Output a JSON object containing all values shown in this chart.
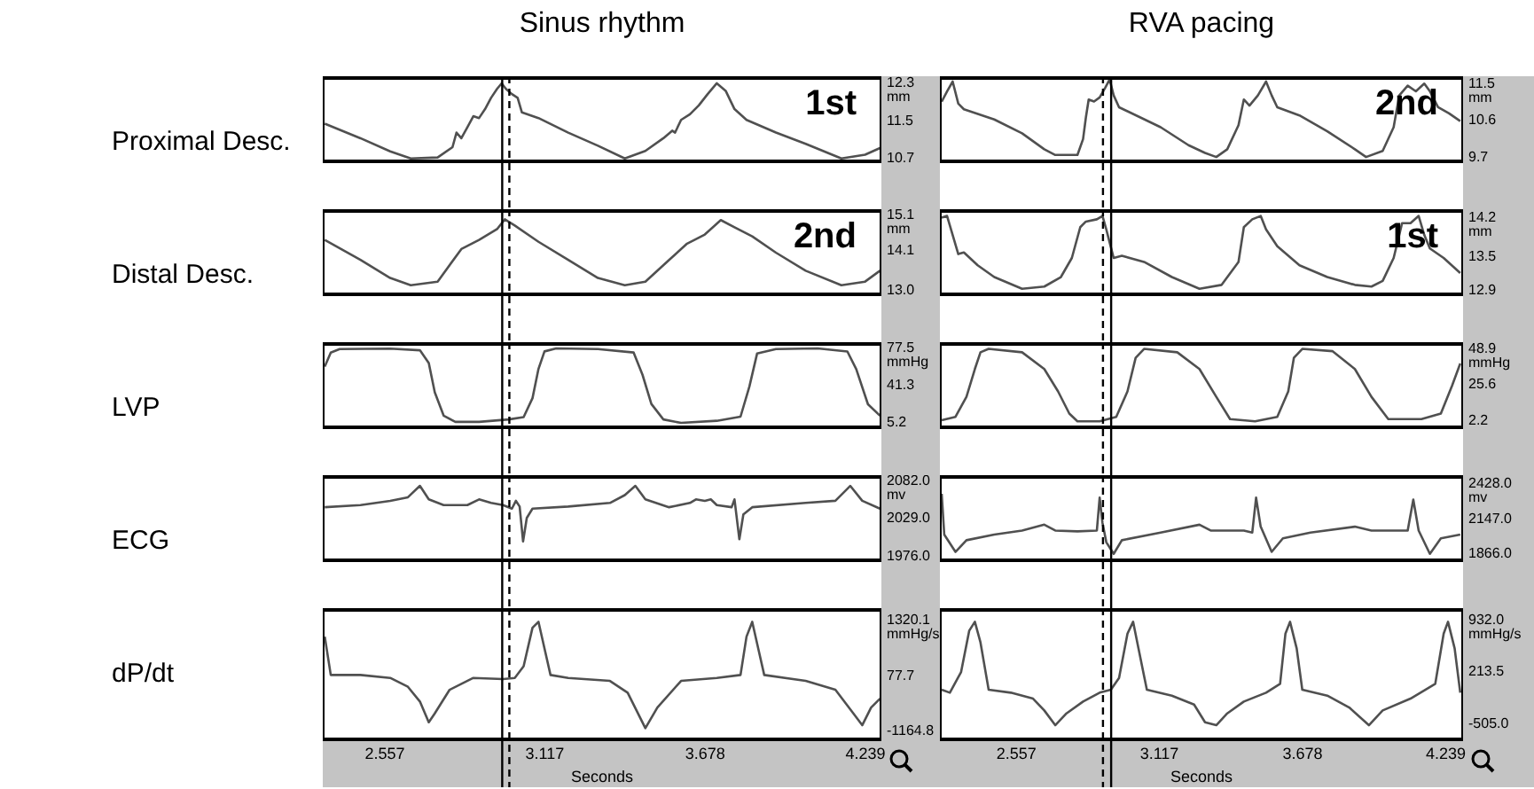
{
  "chart_data": [
    {
      "type": "line",
      "title": "Sinus rhythm",
      "ylabel": "Proximal Desc.",
      "annotations": [
        "1st"
      ],
      "color": "#505050",
      "marker": "none",
      "tick_labels": "y",
      "xlim": [
        2.34,
        4.295
      ],
      "ylim": [
        10.6,
        12.45
      ],
      "yticks": [
        {
          "value": 12.3,
          "label": "12.3\nmm"
        },
        11.5,
        10.7
      ],
      "ref_lines": [
        {
          "axis": "x",
          "value": 2.968,
          "line_style": "solid",
          "color": "#000000"
        },
        {
          "axis": "x",
          "value": 2.993,
          "line_style": "dashed",
          "color": "#000000"
        }
      ],
      "x": [
        2.347,
        2.472,
        2.576,
        2.648,
        2.742,
        2.794,
        2.808,
        2.825,
        2.846,
        2.867,
        2.887,
        2.908,
        2.929,
        2.95,
        2.966,
        2.981,
        3.002,
        3.022,
        3.037,
        3.095,
        3.199,
        3.303,
        3.397,
        3.469,
        3.532,
        3.563,
        3.573,
        3.594,
        3.625,
        3.656,
        3.687,
        3.719,
        3.75,
        3.781,
        3.823,
        3.926,
        4.03,
        4.155,
        4.238,
        4.29
      ],
      "values": [
        11.44,
        11.13,
        10.85,
        10.7,
        10.72,
        10.94,
        11.25,
        11.13,
        11.36,
        11.6,
        11.56,
        11.75,
        11.99,
        12.18,
        12.3,
        12.18,
        12.07,
        11.99,
        11.68,
        11.56,
        11.25,
        10.97,
        10.7,
        10.86,
        11.13,
        11.29,
        11.25,
        11.52,
        11.64,
        11.83,
        12.07,
        12.3,
        12.14,
        11.75,
        11.52,
        11.25,
        11.01,
        10.7,
        10.78,
        10.92
      ]
    },
    {
      "type": "line",
      "ylabel": "Distal Desc.",
      "annotations": [
        "2nd"
      ],
      "color": "#505050",
      "marker": "none",
      "tick_labels": "y",
      "xlim": [
        2.34,
        4.295
      ],
      "ylim": [
        12.85,
        15.25
      ],
      "yticks": [
        {
          "value": 15.1,
          "label": "15.1\nmm"
        },
        14.1,
        {
          "value": 13.0,
          "label": "13.0"
        }
      ],
      "ref_lines": [
        {
          "axis": "x",
          "value": 2.968,
          "line_style": "solid",
          "color": "#000000"
        },
        {
          "axis": "x",
          "value": 2.993,
          "line_style": "dashed",
          "color": "#000000"
        }
      ],
      "x": [
        2.347,
        2.472,
        2.576,
        2.648,
        2.742,
        2.825,
        2.887,
        2.95,
        2.977,
        3.012,
        3.095,
        3.199,
        3.303,
        3.397,
        3.469,
        3.552,
        3.615,
        3.677,
        3.733,
        3.781,
        3.843,
        3.926,
        4.03,
        4.155,
        4.238,
        4.29
      ],
      "values": [
        14.4,
        13.85,
        13.35,
        13.15,
        13.25,
        14.15,
        14.4,
        14.7,
        14.97,
        14.8,
        14.35,
        13.85,
        13.35,
        13.15,
        13.25,
        13.85,
        14.3,
        14.55,
        14.95,
        14.75,
        14.5,
        14.05,
        13.55,
        13.15,
        13.25,
        13.55
      ]
    },
    {
      "type": "line",
      "ylabel": "LVP",
      "color": "#505050",
      "marker": "none",
      "tick_labels": "y",
      "xlim": [
        2.34,
        4.295
      ],
      "ylim": [
        -1,
        83
      ],
      "yticks": [
        {
          "value": 77.5,
          "label": "77.5\nmmHg"
        },
        41.3,
        5.2
      ],
      "ref_lines": [
        {
          "axis": "x",
          "value": 2.968,
          "line_style": "solid",
          "color": "#000000"
        },
        {
          "axis": "x",
          "value": 2.993,
          "line_style": "dashed",
          "color": "#000000"
        }
      ],
      "x": [
        2.347,
        2.368,
        2.399,
        2.576,
        2.68,
        2.711,
        2.732,
        2.763,
        2.804,
        2.887,
        2.991,
        3.043,
        3.074,
        3.095,
        3.116,
        3.157,
        3.303,
        3.428,
        3.459,
        3.49,
        3.532,
        3.594,
        3.719,
        3.802,
        3.833,
        3.86,
        3.926,
        4.072,
        4.176,
        4.207,
        4.248,
        4.29
      ],
      "values": [
        59.4,
        73,
        76.4,
        76.8,
        75.2,
        62.8,
        34.6,
        12,
        6,
        6,
        8.3,
        10.6,
        28.9,
        57.2,
        74.1,
        77,
        76.4,
        73,
        51.5,
        23.3,
        8.3,
        5,
        7,
        11,
        40,
        72,
        76.4,
        77,
        74,
        57,
        23,
        12
      ]
    },
    {
      "type": "line",
      "ylabel": "ECG",
      "color": "#505050",
      "marker": "none",
      "tick_labels": "y",
      "xlim": [
        2.34,
        4.295
      ],
      "ylim": [
        1968,
        2090
      ],
      "yticks": [
        {
          "value": 2082,
          "label": "2082.0\nmv"
        },
        {
          "value": 2029,
          "label": "2029.0"
        },
        {
          "value": 1976,
          "label": "1976.0"
        }
      ],
      "ref_lines": [
        {
          "axis": "x",
          "value": 2.968,
          "line_style": "solid",
          "color": "#000000"
        },
        {
          "axis": "x",
          "value": 2.993,
          "line_style": "dashed",
          "color": "#000000"
        }
      ],
      "x": [
        2.347,
        2.472,
        2.576,
        2.638,
        2.68,
        2.711,
        2.763,
        2.846,
        2.887,
        2.929,
        2.971,
        3.002,
        3.016,
        3.029,
        3.041,
        3.054,
        3.074,
        3.199,
        3.345,
        3.397,
        3.434,
        3.469,
        3.552,
        3.625,
        3.646,
        3.677,
        3.698,
        3.719,
        3.771,
        3.781,
        3.798,
        3.812,
        3.843,
        4.03,
        4.134,
        4.186,
        4.228,
        4.29
      ],
      "values": [
        2045,
        2048,
        2054,
        2059,
        2075,
        2056,
        2048,
        2048,
        2056,
        2051,
        2048,
        2043,
        2054,
        2046,
        1997,
        2030,
        2043,
        2046,
        2051,
        2062,
        2075,
        2056,
        2045,
        2051,
        2056,
        2054,
        2056,
        2048,
        2045,
        2056,
        2000,
        2035,
        2045,
        2051,
        2054,
        2075,
        2054,
        2043
      ]
    },
    {
      "type": "line",
      "ylabel": "dP/dt",
      "xlabel": "Seconds",
      "color": "#505050",
      "marker": "none",
      "xlim": [
        2.34,
        4.295
      ],
      "xticks": [
        2.557,
        3.117,
        3.678,
        4.239
      ],
      "ylim": [
        -1400,
        1600
      ],
      "yticks": [
        {
          "value": 1320.1,
          "label": "1320.1\nmmHg/s"
        },
        77.7,
        -1164.8
      ],
      "ref_lines": [
        {
          "axis": "x",
          "value": 2.968,
          "line_style": "solid",
          "color": "#000000"
        },
        {
          "axis": "x",
          "value": 2.993,
          "line_style": "dashed",
          "color": "#000000"
        }
      ],
      "x": [
        2.347,
        2.368,
        2.472,
        2.576,
        2.638,
        2.68,
        2.711,
        2.732,
        2.784,
        2.867,
        2.971,
        3.012,
        3.043,
        3.074,
        3.095,
        3.116,
        3.137,
        3.199,
        3.345,
        3.407,
        3.469,
        3.511,
        3.594,
        3.719,
        3.802,
        3.823,
        3.843,
        3.864,
        3.885,
        4.03,
        4.134,
        4.197,
        4.228,
        4.259,
        4.29
      ],
      "values": [
        957,
        92,
        92,
        26,
        -174,
        -507,
        -974,
        -774,
        -241,
        26,
        -1,
        26,
        291,
        1157,
        1291,
        691,
        92,
        26,
        -41,
        -307,
        -1107,
        -641,
        -41,
        26,
        92,
        957,
        1291,
        691,
        92,
        -41,
        -241,
        -774,
        -1041,
        -641,
        -441
      ]
    },
    {
      "type": "line",
      "title": "RVA pacing",
      "annotations": [
        "2nd"
      ],
      "color": "#505050",
      "marker": "none",
      "tick_labels": "y",
      "xlim": [
        2.257,
        4.307
      ],
      "ylim": [
        9.55,
        11.68
      ],
      "yticks": [
        {
          "value": 11.5,
          "label": "11.5\nmm"
        },
        10.6,
        9.7
      ],
      "ref_lines": [
        {
          "axis": "x",
          "value": 2.928,
          "line_style": "solid",
          "color": "#000000"
        },
        {
          "axis": "x",
          "value": 2.896,
          "line_style": "dashed",
          "color": "#000000"
        }
      ],
      "x": [
        2.264,
        2.285,
        2.307,
        2.329,
        2.351,
        2.47,
        2.579,
        2.666,
        2.709,
        2.796,
        2.818,
        2.829,
        2.84,
        2.861,
        2.883,
        2.905,
        2.922,
        2.938,
        2.959,
        3.122,
        3.231,
        3.296,
        3.34,
        3.383,
        3.427,
        3.448,
        3.47,
        3.503,
        3.535,
        3.557,
        3.579,
        3.666,
        3.775,
        3.883,
        3.927,
        3.992,
        4.035,
        4.057,
        4.09,
        4.122,
        4.155,
        4.177,
        4.209,
        4.252,
        4.296
      ],
      "values": [
        11.06,
        11.31,
        11.55,
        11.01,
        10.87,
        10.62,
        10.28,
        9.89,
        9.75,
        9.75,
        10.14,
        10.67,
        11.11,
        11.06,
        11.16,
        11.4,
        11.6,
        11.21,
        10.92,
        10.43,
        9.99,
        9.8,
        9.7,
        9.89,
        10.48,
        11.11,
        10.96,
        11.21,
        11.55,
        11.21,
        10.92,
        10.72,
        10.33,
        9.89,
        9.7,
        9.85,
        10.43,
        11.21,
        11.45,
        11.31,
        11.5,
        11.31,
        10.92,
        10.77,
        10.58
      ]
    },
    {
      "type": "line",
      "annotations": [
        "1st"
      ],
      "color": "#505050",
      "marker": "none",
      "tick_labels": "y",
      "xlim": [
        2.257,
        4.307
      ],
      "ylim": [
        12.8,
        14.35
      ],
      "yticks": [
        {
          "value": 14.2,
          "label": "14.2\nmm"
        },
        13.5,
        12.9
      ],
      "ref_lines": [
        {
          "axis": "x",
          "value": 2.928,
          "line_style": "solid",
          "color": "#000000"
        },
        {
          "axis": "x",
          "value": 2.896,
          "line_style": "dashed",
          "color": "#000000"
        }
      ],
      "x": [
        2.264,
        2.285,
        2.307,
        2.329,
        2.351,
        2.405,
        2.47,
        2.579,
        2.666,
        2.731,
        2.774,
        2.807,
        2.829,
        2.872,
        2.894,
        2.909,
        2.922,
        2.938,
        2.97,
        3.057,
        3.166,
        3.274,
        3.361,
        3.427,
        3.448,
        3.481,
        3.514,
        3.535,
        3.579,
        3.666,
        3.775,
        3.883,
        3.948,
        3.992,
        4.035,
        4.068,
        4.101,
        4.133,
        4.155,
        4.177,
        4.231,
        4.296
      ],
      "values": [
        14.2,
        14.23,
        13.89,
        13.55,
        13.58,
        13.35,
        13.14,
        12.93,
        12.97,
        13.14,
        13.48,
        14.03,
        14.13,
        14.17,
        14.23,
        13.99,
        13.76,
        13.48,
        13.52,
        13.41,
        13.14,
        12.93,
        13.0,
        13.41,
        14.03,
        14.17,
        14.23,
        13.99,
        13.69,
        13.35,
        13.14,
        13.0,
        12.97,
        13.07,
        13.48,
        14.1,
        14.1,
        14.23,
        13.89,
        13.65,
        13.48,
        13.21
      ]
    },
    {
      "type": "line",
      "color": "#505050",
      "marker": "none",
      "tick_labels": "y",
      "xlim": [
        2.257,
        4.307
      ],
      "ylim": [
        -3,
        53
      ],
      "yticks": [
        {
          "value": 48.9,
          "label": "48.9\nmmHg"
        },
        25.6,
        2.2
      ],
      "ref_lines": [
        {
          "axis": "x",
          "value": 2.928,
          "line_style": "solid",
          "color": "#000000"
        },
        {
          "axis": "x",
          "value": 2.896,
          "line_style": "dashed",
          "color": "#000000"
        }
      ],
      "x": [
        2.264,
        2.318,
        2.361,
        2.394,
        2.416,
        2.448,
        2.579,
        2.666,
        2.72,
        2.764,
        2.796,
        2.883,
        2.948,
        2.992,
        3.024,
        3.057,
        3.187,
        3.274,
        3.34,
        3.394,
        3.492,
        3.579,
        3.622,
        3.644,
        3.677,
        3.796,
        3.883,
        3.948,
        4.014,
        4.144,
        4.22,
        4.264,
        4.296
      ],
      "values": [
        2.7,
        4.9,
        17.8,
        35.7,
        46.5,
        48.7,
        46.5,
        35.7,
        21.3,
        7.0,
        2.0,
        2.0,
        4.9,
        21.3,
        42.9,
        48.7,
        46.5,
        35.7,
        17.8,
        3.4,
        2.0,
        4.9,
        21.3,
        42.9,
        48.7,
        47.2,
        35.7,
        17.8,
        3.4,
        3.4,
        7.0,
        25,
        39.3
      ]
    },
    {
      "type": "line",
      "color": "#505050",
      "marker": "none",
      "tick_labels": "y",
      "xlim": [
        2.257,
        4.307
      ],
      "ylim": [
        1800,
        2500
      ],
      "yticks": [
        {
          "value": 2428,
          "label": "2428.0\nmv"
        },
        {
          "value": 2147,
          "label": "2147.0"
        },
        {
          "value": 1866,
          "label": "1866.0"
        }
      ],
      "ref_lines": [
        {
          "axis": "x",
          "value": 2.928,
          "line_style": "solid",
          "color": "#000000"
        },
        {
          "axis": "x",
          "value": 2.896,
          "line_style": "dashed",
          "color": "#000000"
        }
      ],
      "x": [
        2.264,
        2.274,
        2.318,
        2.361,
        2.47,
        2.579,
        2.666,
        2.709,
        2.796,
        2.872,
        2.883,
        2.894,
        2.909,
        2.938,
        2.97,
        3.122,
        3.274,
        3.318,
        3.448,
        3.481,
        3.496,
        3.514,
        3.557,
        3.601,
        3.709,
        3.883,
        3.948,
        4.09,
        4.112,
        4.133,
        4.177,
        4.22,
        4.296
      ],
      "values": [
        2350,
        2022,
        1882,
        1976,
        2022,
        2054,
        2101,
        2054,
        2047,
        2054,
        2319,
        2116,
        1960,
        1866,
        1976,
        2038,
        2101,
        2054,
        2054,
        2038,
        2319,
        2085,
        1882,
        1991,
        2038,
        2085,
        2054,
        2054,
        2304,
        2054,
        1866,
        1991,
        2022
      ]
    },
    {
      "type": "line",
      "xlabel": "Seconds",
      "color": "#505050",
      "marker": "none",
      "xlim": [
        2.257,
        4.307
      ],
      "xticks": [
        2.557,
        3.117,
        3.678,
        4.239
      ],
      "ylim": [
        -745,
        1100
      ],
      "yticks": [
        {
          "value": 932,
          "label": "932.0\nmmHg/s"
        },
        {
          "value": 213.5,
          "label": "213.5"
        },
        {
          "value": -505,
          "label": "-505.0"
        }
      ],
      "ref_lines": [
        {
          "axis": "x",
          "value": 2.928,
          "line_style": "solid",
          "color": "#000000"
        },
        {
          "axis": "x",
          "value": 2.896,
          "line_style": "dashed",
          "color": "#000000"
        }
      ],
      "x": [
        2.264,
        2.296,
        2.34,
        2.372,
        2.394,
        2.416,
        2.448,
        2.535,
        2.622,
        2.666,
        2.709,
        2.753,
        2.818,
        2.883,
        2.927,
        2.959,
        2.992,
        3.014,
        3.035,
        3.068,
        3.166,
        3.253,
        3.296,
        3.34,
        3.383,
        3.448,
        3.535,
        3.59,
        3.611,
        3.629,
        3.655,
        3.677,
        3.775,
        3.861,
        3.938,
        3.992,
        4.101,
        4.198,
        4.231,
        4.248,
        4.274,
        4.296
      ],
      "values": [
        -32,
        -73,
        214,
        788,
        911,
        624,
        -32,
        -73,
        -155,
        -319,
        -524,
        -360,
        -196,
        -73,
        -32,
        132,
        747,
        911,
        542,
        -32,
        -114,
        -237,
        -483,
        -524,
        -360,
        -196,
        -73,
        50,
        747,
        911,
        542,
        -32,
        -114,
        -278,
        -524,
        -319,
        -155,
        50,
        747,
        911,
        542,
        -73
      ]
    }
  ]
}
